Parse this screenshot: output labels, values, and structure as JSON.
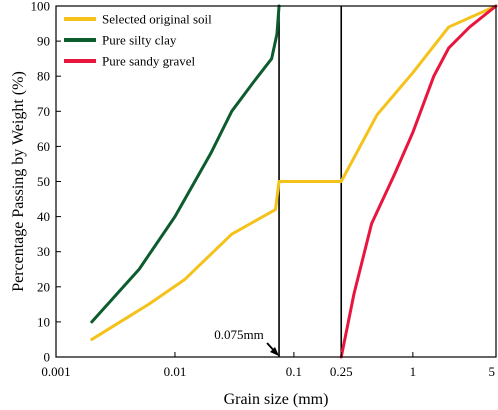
{
  "chart_data": {
    "type": "line",
    "x_scale": "log",
    "xlabel": "Grain size (mm)",
    "ylabel": "Percentage Passing by Weight (%)",
    "xlim": [
      0.001,
      5
    ],
    "ylim": [
      0,
      100
    ],
    "x_ticks": [
      {
        "value": 0.001,
        "label": "0.001"
      },
      {
        "value": 0.01,
        "label": "0.01"
      },
      {
        "value": 0.1,
        "label": "0.1"
      },
      {
        "value": 0.25,
        "label": "0.25"
      },
      {
        "value": 1,
        "label": "1"
      },
      {
        "value": 5,
        "label": "5"
      }
    ],
    "y_ticks": [
      0,
      10,
      20,
      30,
      40,
      50,
      60,
      70,
      80,
      90,
      100
    ],
    "grid": false,
    "legend_position": "top-left",
    "series": [
      {
        "name": "Selected original soil",
        "color": "#F5C21B",
        "points": [
          [
            0.002,
            5
          ],
          [
            0.006,
            15
          ],
          [
            0.012,
            22
          ],
          [
            0.03,
            35
          ],
          [
            0.07,
            42
          ],
          [
            0.075,
            50
          ],
          [
            0.25,
            50
          ],
          [
            0.5,
            69
          ],
          [
            1.0,
            81
          ],
          [
            2.0,
            94
          ],
          [
            5.0,
            100
          ]
        ]
      },
      {
        "name": "Pure silty clay",
        "color": "#0D5C2E",
        "points": [
          [
            0.002,
            10
          ],
          [
            0.005,
            25
          ],
          [
            0.01,
            40
          ],
          [
            0.02,
            58
          ],
          [
            0.03,
            70
          ],
          [
            0.045,
            78
          ],
          [
            0.065,
            85
          ],
          [
            0.072,
            92
          ],
          [
            0.075,
            100
          ]
        ]
      },
      {
        "name": "Pure sandy gravel",
        "color": "#E8163F",
        "points": [
          [
            0.25,
            0
          ],
          [
            0.32,
            18
          ],
          [
            0.45,
            38
          ],
          [
            0.7,
            52
          ],
          [
            1.0,
            64
          ],
          [
            1.5,
            80
          ],
          [
            2.0,
            88
          ],
          [
            3.0,
            94
          ],
          [
            5.0,
            100
          ]
        ]
      }
    ],
    "reference_lines": [
      {
        "x": 0.075,
        "color": "#000000"
      },
      {
        "x": 0.25,
        "color": "#000000"
      }
    ],
    "annotations": [
      {
        "text": "0.075mm",
        "x": 0.075,
        "y": 0
      }
    ]
  }
}
